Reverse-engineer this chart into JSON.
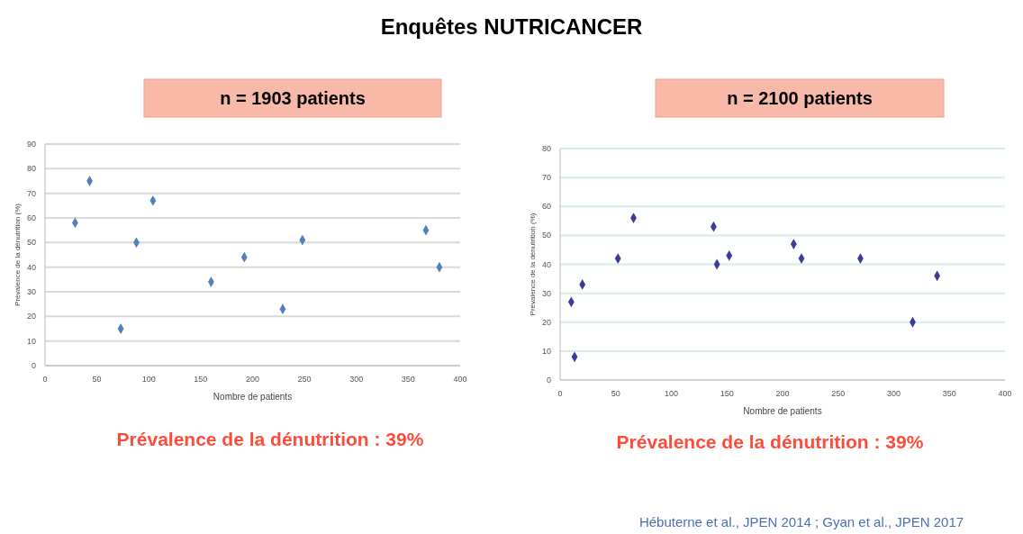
{
  "chart_data": [
    {
      "type": "scatter",
      "title": "Enquêtes NUTRICANCER",
      "subtitle": "n = 1903 patients",
      "xlabel": "Nombre de patients",
      "ylabel": "Prévalence de la dénutrition (%)",
      "x": [
        43,
        104,
        29,
        88,
        192,
        160,
        229,
        73,
        248,
        367,
        380
      ],
      "series": [
        {
          "color": "#4f81bd",
          "values": [
            75,
            67,
            58,
            50,
            44,
            34,
            23,
            15,
            51,
            55,
            40
          ]
        }
      ],
      "xlim": [
        0,
        400
      ],
      "xticks": [
        0,
        50,
        100,
        150,
        200,
        250,
        300,
        350,
        400
      ],
      "ylim": [
        0,
        90
      ],
      "yticks": [
        0,
        10,
        20,
        30,
        40,
        50,
        60,
        70,
        80,
        90
      ],
      "grid": "y",
      "marker": "diamond",
      "annotations": [
        "Prévalence de la dénutrition : 39%"
      ]
    },
    {
      "type": "scatter",
      "subtitle": "n = 2100 patients",
      "xlabel": "Nombre de patients",
      "ylabel": "Prévalence de la dénutrition (%)",
      "x": [
        66,
        138,
        210,
        217,
        270,
        152,
        141,
        52,
        20,
        10,
        13,
        339,
        317
      ],
      "series": [
        {
          "color": "#3b3b9a",
          "values": [
            56,
            53,
            47,
            42,
            42,
            43,
            40,
            42,
            33,
            27,
            8,
            36,
            20
          ]
        }
      ],
      "xlim": [
        0,
        400
      ],
      "xticks": [
        0,
        50,
        100,
        150,
        200,
        250,
        300,
        350,
        400
      ],
      "ylim": [
        0,
        80
      ],
      "yticks": [
        0,
        10,
        20,
        30,
        40,
        50,
        60,
        70,
        80
      ],
      "grid": "y",
      "marker": "diamond",
      "annotations": [
        "Prévalence de la dénutrition : 39%",
        "Hébuterne et al., JPEN 2014 ; Gyan et al., JPEN 2017"
      ]
    }
  ]
}
